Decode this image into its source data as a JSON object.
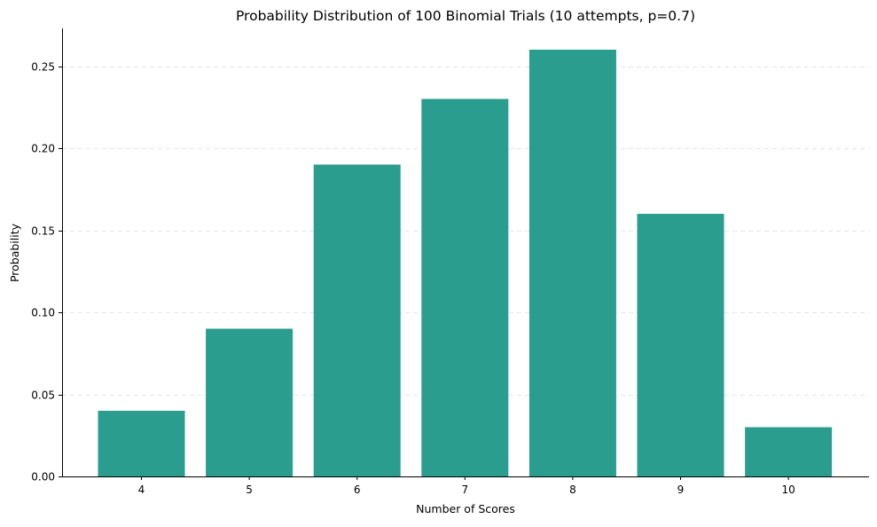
{
  "chart_data": {
    "type": "bar",
    "title": "Probability Distribution of 100 Binomial Trials (10 attempts, p=0.7)",
    "xlabel": "Number of Scores",
    "ylabel": "Probability",
    "categories": [
      "4",
      "5",
      "6",
      "7",
      "8",
      "9",
      "10"
    ],
    "values": [
      0.04,
      0.09,
      0.19,
      0.23,
      0.26,
      0.16,
      0.03
    ],
    "ylim": [
      0,
      0.273
    ],
    "yticks": [
      "0.00",
      "0.05",
      "0.10",
      "0.15",
      "0.20",
      "0.25"
    ],
    "ytick_values": [
      0,
      0.05,
      0.1,
      0.15,
      0.2,
      0.25
    ],
    "grid": "y-axis dashed",
    "bar_color": "#2a9d8f",
    "legend": "none"
  }
}
